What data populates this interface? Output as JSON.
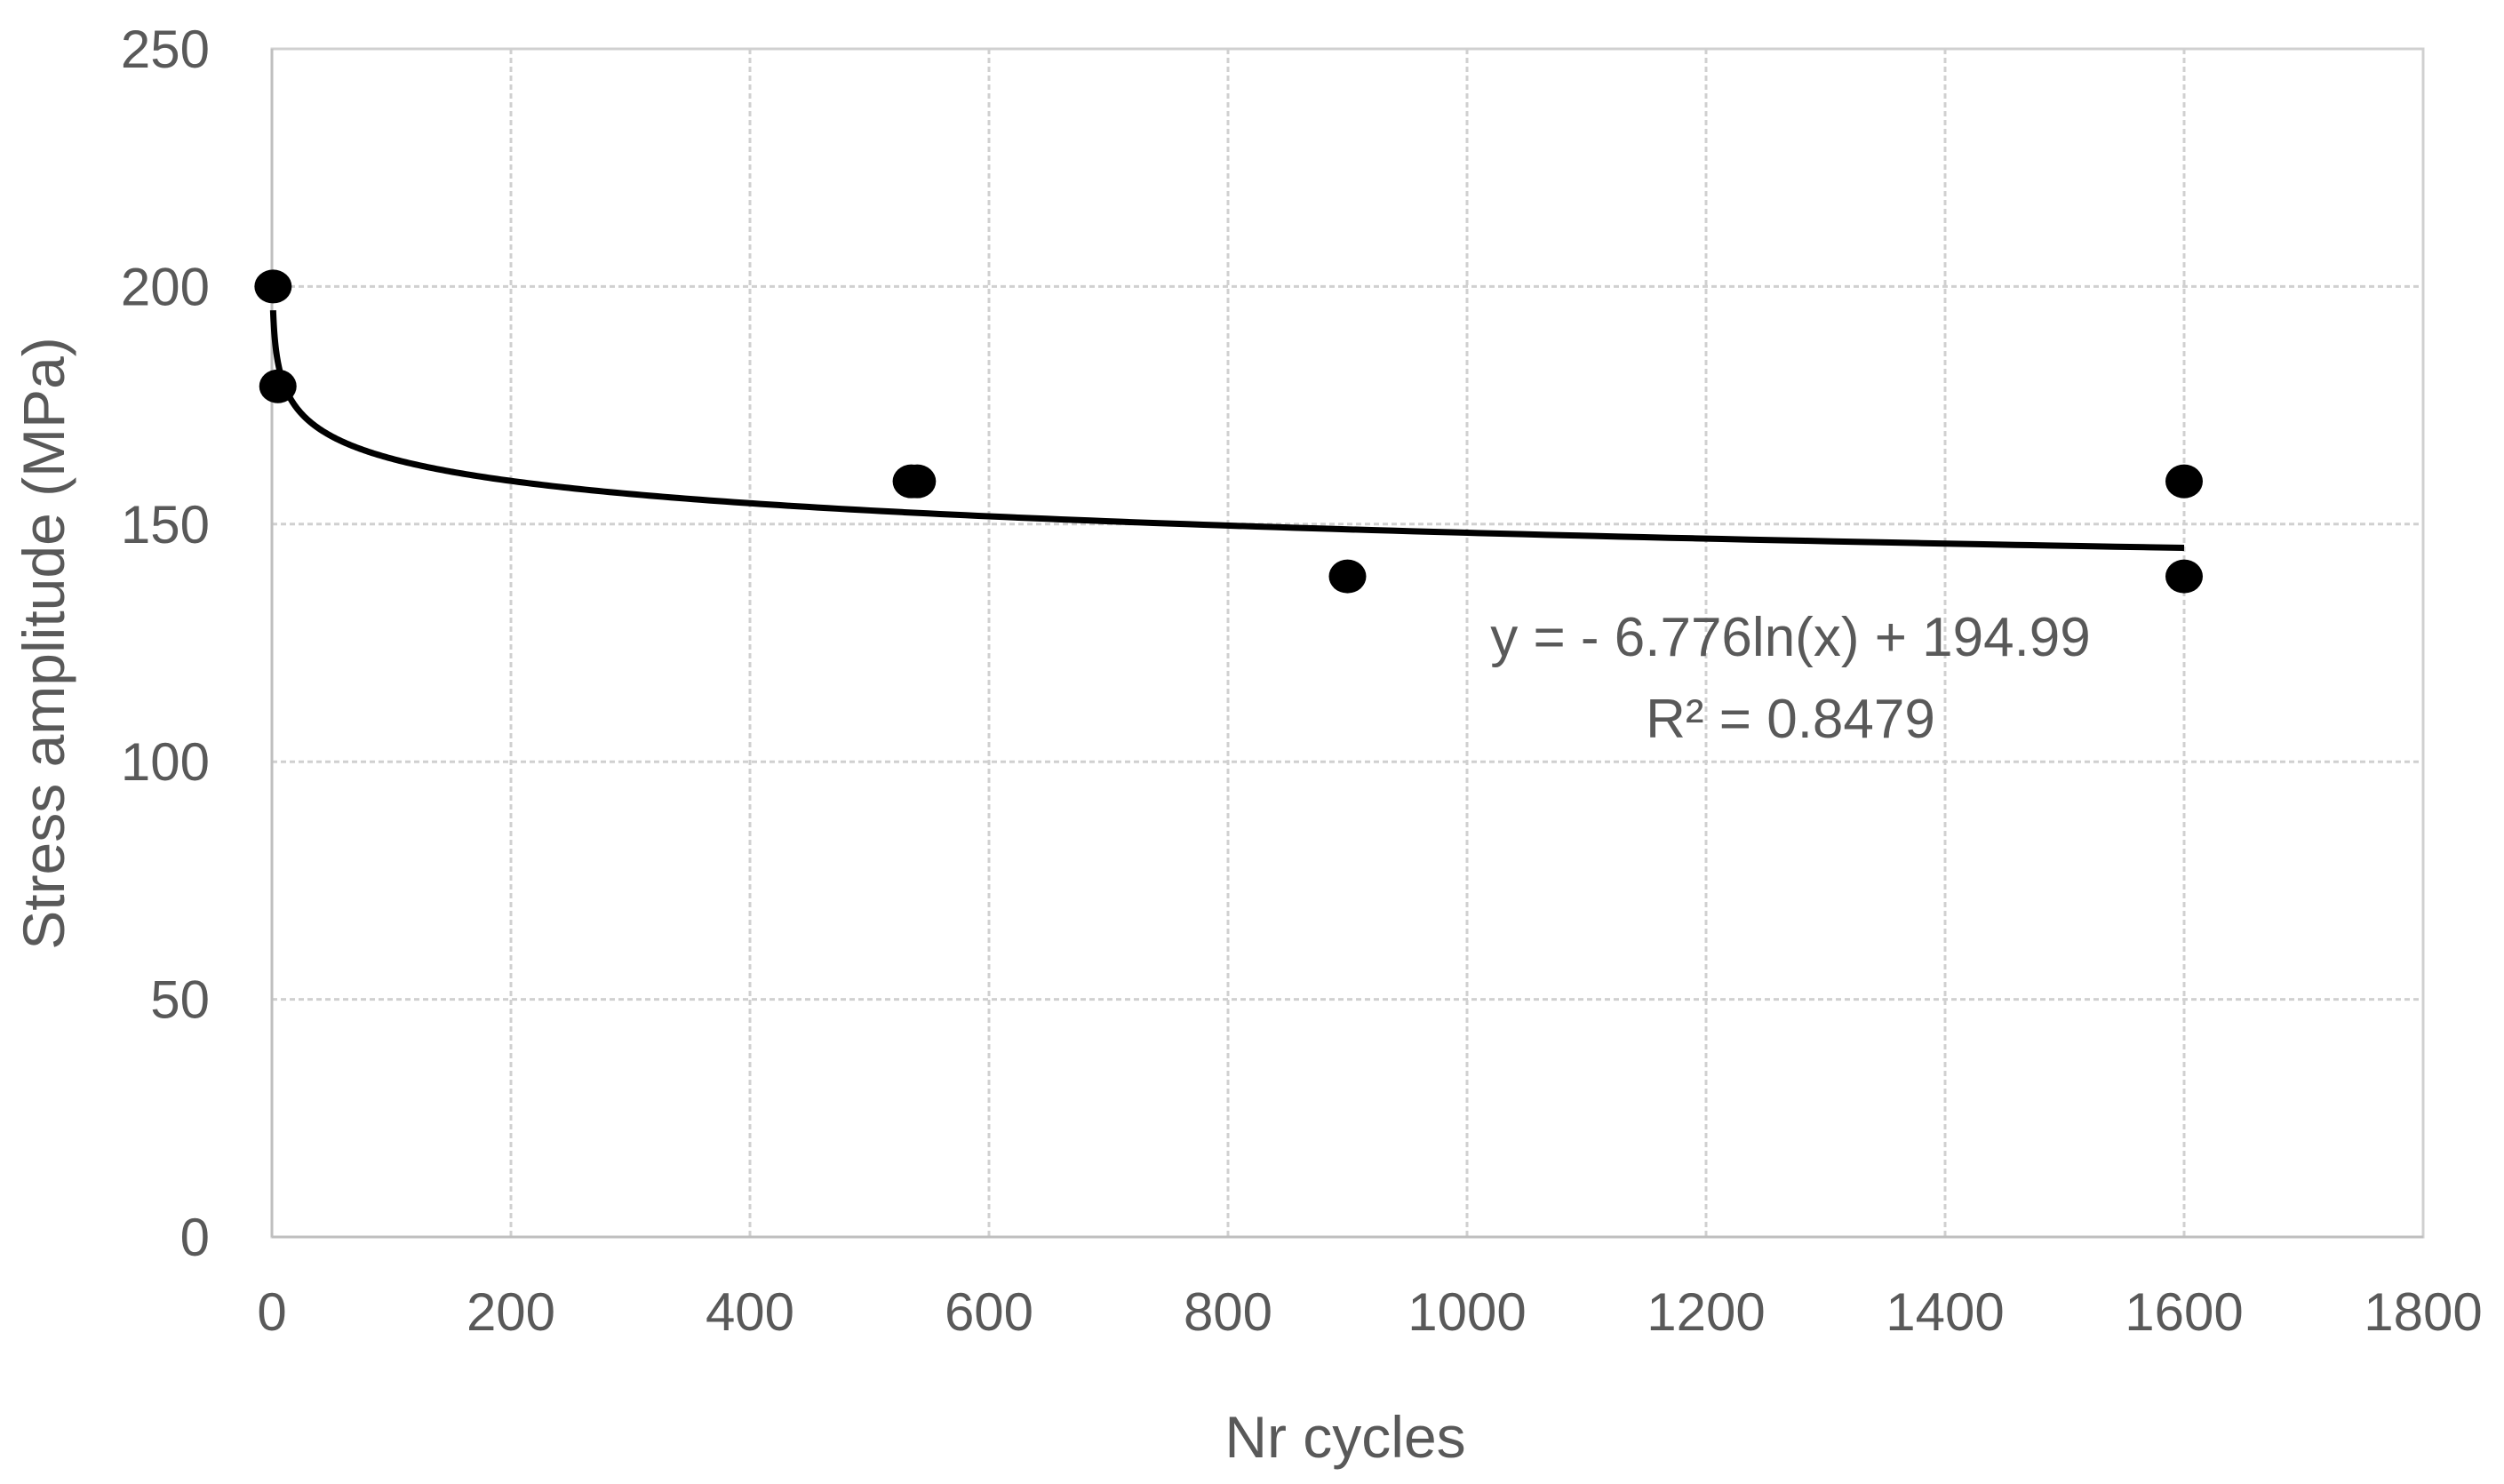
{
  "chart_data": {
    "type": "scatter",
    "xlabel": "Nr cycles",
    "ylabel": "Stress amplitude (MPa)",
    "xlim": [
      0,
      1800
    ],
    "ylim": [
      0,
      250
    ],
    "xticks": [
      0,
      200,
      400,
      600,
      800,
      1000,
      1200,
      1400,
      1600,
      1800
    ],
    "yticks": [
      0,
      50,
      100,
      150,
      200,
      250
    ],
    "grid": true,
    "series": [
      {
        "points": [
          {
            "x": 1,
            "y": 200
          },
          {
            "x": 5,
            "y": 179
          },
          {
            "x": 535,
            "y": 159
          },
          {
            "x": 540,
            "y": 159
          },
          {
            "x": 900,
            "y": 139
          },
          {
            "x": 1600,
            "y": 159
          },
          {
            "x": 1600,
            "y": 139
          }
        ],
        "color": "#000000"
      }
    ],
    "trendline": {
      "type": "logarithmic",
      "a": -6.776,
      "b": 194.99,
      "x_range": [
        1,
        1600
      ],
      "equation_label": "y = - 6.776ln(x) + 194.99",
      "r2_label": "R² = 0.8479",
      "color": "#000000"
    }
  }
}
